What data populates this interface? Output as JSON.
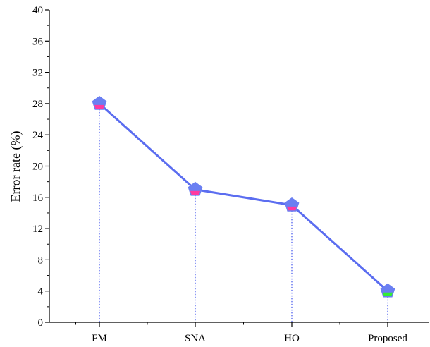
{
  "chart_data": {
    "type": "line",
    "title": "",
    "xlabel": "",
    "ylabel": "Error rate (%)",
    "categories": [
      "FM",
      "SNA",
      "HO",
      "Proposed"
    ],
    "series": [
      {
        "values": [
          28,
          17,
          15,
          4
        ],
        "line_color": "#5b6df0",
        "marker": "pentagon",
        "marker_top_color": "#6a7ff2",
        "marker_bottom_colors": [
          "#ff3aa0",
          "#ff3aa0",
          "#ff3aa0",
          "#33ee33"
        ],
        "drop_lines": true,
        "drop_line_style": "dotted"
      }
    ],
    "ylim": [
      0,
      40
    ],
    "yticks": [
      0,
      4,
      8,
      12,
      16,
      20,
      24,
      28,
      32,
      36,
      40
    ],
    "y_tick_labels": [
      "0",
      "4",
      "8",
      "12",
      "16",
      "20",
      "24",
      "28",
      "32",
      "36",
      "40"
    ],
    "y_minor_tick_step": 2,
    "grid": false,
    "legend": "none",
    "frame": "open-top-right"
  }
}
